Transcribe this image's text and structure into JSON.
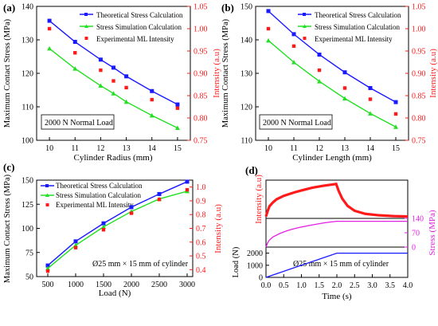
{
  "panels": {
    "a": {
      "label": "(a)",
      "annotation": "2000 N Normal Load"
    },
    "b": {
      "label": "(b)",
      "annotation": "2000 N Normal Load"
    },
    "c": {
      "label": "(c)",
      "annotation": "Ø25 mm × 15 mm of cylinder"
    },
    "d": {
      "label": "(d)",
      "annotation": "Ø25 mm × 15 mm of cylinder"
    }
  },
  "colors": {
    "theoretical": "#1a1aff",
    "simulation": "#22e022",
    "experimental": "#ff1a1a",
    "stress_axis": "#e020e0"
  },
  "chart_data": [
    {
      "id": "a",
      "type": "line",
      "x": [
        10,
        11,
        12,
        12.5,
        13,
        14,
        15
      ],
      "xlabel": "Cylinder Radius (mm)",
      "xlim": [
        9.5,
        15.5
      ],
      "xticks": [
        "10",
        "11",
        "12",
        "13",
        "14",
        "15"
      ],
      "ylabel": "Maximum Contact Stress (MPa)",
      "ylim": [
        100,
        140
      ],
      "yticks": [
        "100",
        "110",
        "120",
        "130",
        "140"
      ],
      "y2label": "Intensity (a.u)",
      "y2lim": [
        0.75,
        1.05
      ],
      "y2ticks": [
        "0.75",
        "0.80",
        "0.85",
        "0.90",
        "0.95",
        "1.00",
        "1.05"
      ],
      "legend": "top-right",
      "series": [
        {
          "name": "Theoretical  Stress Calculation",
          "axis": "left",
          "marker": "square",
          "values": [
            135.7,
            129.4,
            124.1,
            121.7,
            119.1,
            114.7,
            110.7
          ]
        },
        {
          "name": "Stress Simulation Calculation",
          "axis": "left",
          "marker": "triangle",
          "values": [
            127.4,
            121.4,
            116.3,
            114.0,
            111.5,
            107.4,
            103.7
          ]
        },
        {
          "name": "Experimental ML Intensity",
          "axis": "right",
          "marker": "dot",
          "values": [
            1.0,
            0.946,
            0.907,
            0.883,
            0.868,
            0.841,
            0.822
          ]
        }
      ]
    },
    {
      "id": "b",
      "type": "line",
      "x": [
        10,
        11,
        12,
        13,
        14,
        15
      ],
      "xlabel": "Cylinder Length (mm)",
      "xlim": [
        9.5,
        15.5
      ],
      "xticks": [
        "10",
        "11",
        "12",
        "13",
        "14",
        "15"
      ],
      "ylabel": "Maximum Contact Stress (MPa)",
      "ylim": [
        110,
        150
      ],
      "yticks": [
        "110",
        "120",
        "130",
        "140",
        "150"
      ],
      "y2label": "Intensity (a.u)",
      "y2lim": [
        0.75,
        1.05
      ],
      "y2ticks": [
        "0.75",
        "0.80",
        "0.85",
        "0.90",
        "0.95",
        "1.00",
        "1.05"
      ],
      "legend": "top-right",
      "series": [
        {
          "name": "Theoretical  Stress Calculation",
          "axis": "left",
          "marker": "square",
          "values": [
            148.6,
            141.7,
            135.6,
            130.3,
            125.6,
            121.4
          ]
        },
        {
          "name": "Stress Simulation Calculation",
          "axis": "left",
          "marker": "triangle",
          "values": [
            139.8,
            133.3,
            127.6,
            122.5,
            118.0,
            114.0
          ]
        },
        {
          "name": "Experimental ML Intensity",
          "axis": "right",
          "marker": "dot",
          "values": [
            1.0,
            0.961,
            0.907,
            0.867,
            0.842,
            0.809
          ]
        }
      ]
    },
    {
      "id": "c",
      "type": "line",
      "x": [
        500,
        1000,
        1500,
        2000,
        2500,
        3000
      ],
      "xlabel": "Load (N)",
      "xlim": [
        300,
        3100
      ],
      "xticks": [
        "500",
        "1000",
        "1500",
        "2000",
        "2500",
        "3000"
      ],
      "ylabel": "Maximum Contact Stress (MPa)",
      "ylim": [
        50,
        150
      ],
      "yticks": [
        "50",
        "75",
        "100",
        "125",
        "150"
      ],
      "y2label": "Intensity (a.u)",
      "y2lim": [
        0.35,
        1.05
      ],
      "y2ticks": [
        "0.4",
        "0.5",
        "0.6",
        "0.7",
        "0.8",
        "0.9",
        "1.0"
      ],
      "legend": "top-left",
      "series": [
        {
          "name": "Theoretical  Stress Calculation",
          "axis": "left",
          "marker": "square",
          "values": [
            61.5,
            86.5,
            105.2,
            122.0,
            135.6,
            148.4
          ]
        },
        {
          "name": "Stress Simulation Calculation",
          "axis": "left",
          "marker": "triangle",
          "values": [
            58.5,
            82.5,
            101.5,
            117.5,
            130.5,
            138.5
          ]
        },
        {
          "name": "Experimental ML Intensity",
          "axis": "right",
          "marker": "dot",
          "values": [
            0.39,
            0.56,
            0.69,
            0.81,
            0.91,
            0.98
          ]
        }
      ]
    },
    {
      "id": "d",
      "type": "line",
      "xlabel": "Time (s)",
      "xlim": [
        0,
        4
      ],
      "xticks": [
        "0.0",
        "0.5",
        "1.0",
        "1.5",
        "2.0",
        "2.5",
        "3.0",
        "3.5",
        "4.0"
      ],
      "subplots": [
        {
          "ylabel": "Intensity (a.u)",
          "ylim": [
            0,
            1
          ],
          "yticks": [],
          "series": [
            {
              "axis": "left",
              "x": [
                0.0,
                0.05,
                0.1,
                0.2,
                0.3,
                0.5,
                0.8,
                1.0,
                1.3,
                1.6,
                1.9,
                1.98,
                2.05,
                2.15,
                2.3,
                2.5,
                2.8,
                3.2,
                3.6,
                4.0
              ],
              "values": [
                0.05,
                0.2,
                0.32,
                0.42,
                0.5,
                0.59,
                0.68,
                0.73,
                0.8,
                0.85,
                0.89,
                0.9,
                0.72,
                0.52,
                0.33,
                0.2,
                0.12,
                0.08,
                0.06,
                0.05
              ]
            }
          ]
        },
        {
          "ylabel": "Stress (MPa)",
          "ylim": [
            0,
            140
          ],
          "yticks": [
            "0",
            "70",
            "140"
          ],
          "series": [
            {
              "axis": "right",
              "x": [
                0.0,
                0.05,
                0.1,
                0.2,
                0.4,
                0.6,
                0.8,
                1.0,
                1.3,
                1.6,
                1.8,
                2.0,
                4.0
              ],
              "values": [
                0,
                22,
                35,
                50,
                67,
                80,
                90,
                98,
                108,
                117,
                122,
                126,
                126
              ]
            }
          ]
        },
        {
          "ylabel": "Load (N)",
          "ylim": [
            0,
            2500
          ],
          "yticks": [
            "0",
            "1000",
            "2000"
          ],
          "series": [
            {
              "axis": "left",
              "x": [
                0.0,
                2.0,
                4.0
              ],
              "values": [
                0,
                2000,
                2000
              ]
            }
          ]
        }
      ]
    }
  ]
}
